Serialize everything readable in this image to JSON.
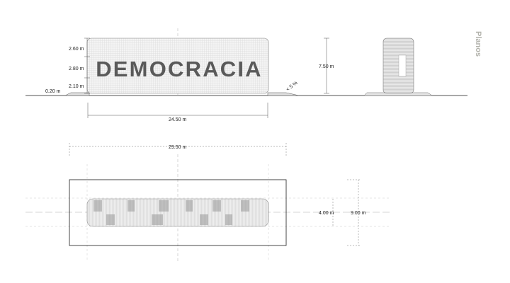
{
  "sheet": {
    "title": "Planos"
  },
  "elevation": {
    "sign_word": "DEMOCRACIA",
    "heights": {
      "top": "2.60 m",
      "middle": "2.80 m",
      "bottom": "2.10 m"
    },
    "base_offset": "0.20 m",
    "total_height": "7.50 m",
    "length": "24.50 m",
    "slope": "< 5 %"
  },
  "plan": {
    "outer_length": "29.50 m",
    "sign_depth": "4.00 m",
    "outer_depth": "9.00 m"
  },
  "colors": {
    "line": "#1a1a1a",
    "dim_line": "#555555",
    "mesh_fill": "#f2f2f2",
    "mesh_line": "#cfcfcf",
    "text_fill": "#5a5a5a",
    "title": "#b3b3ac"
  }
}
